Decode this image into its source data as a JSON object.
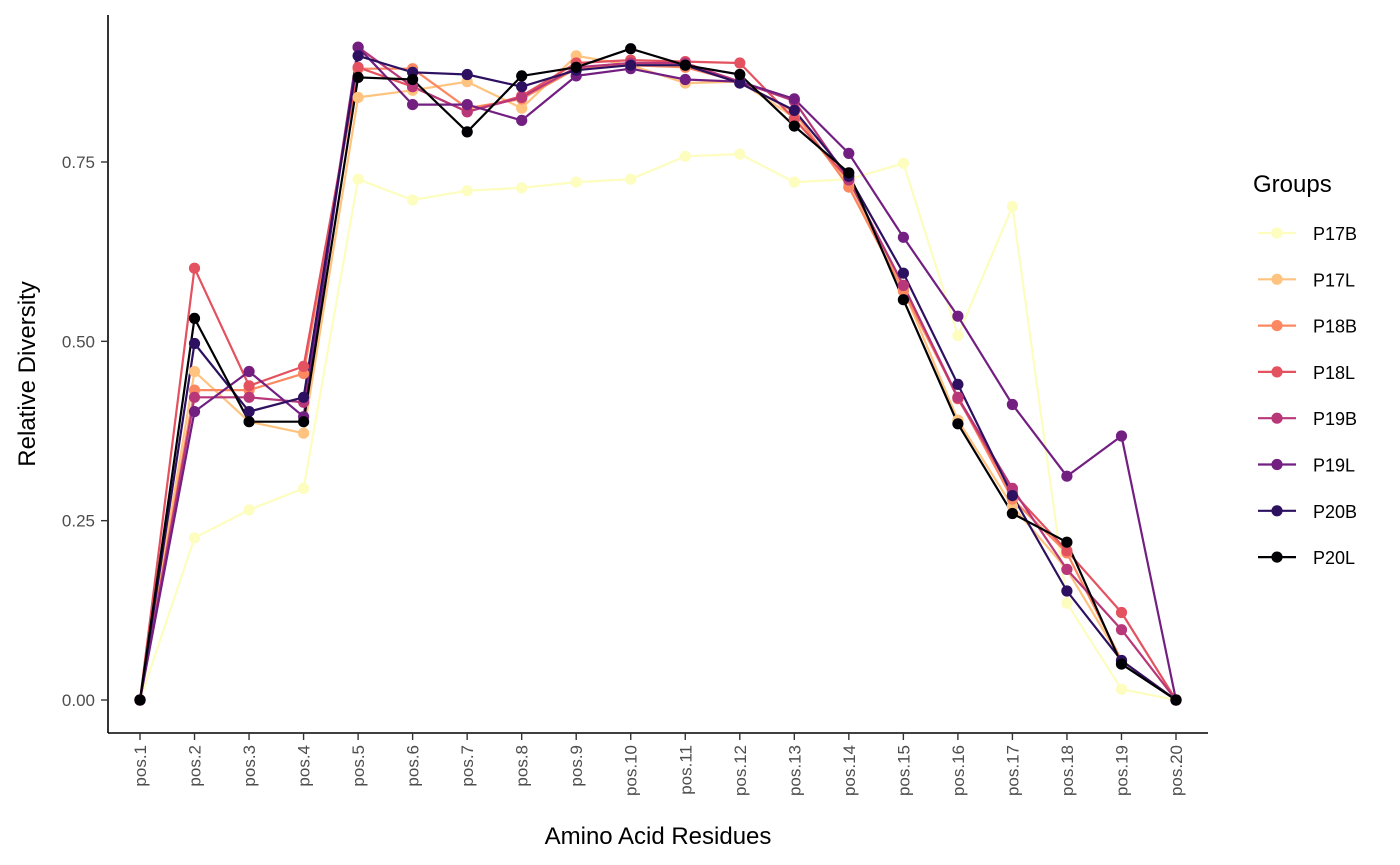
{
  "chart_data": {
    "type": "line",
    "xlabel": "Amino Acid Residues",
    "ylabel": "Relative Diversity",
    "categories": [
      "pos.1",
      "pos.2",
      "pos.3",
      "pos.4",
      "pos.5",
      "pos.6",
      "pos.7",
      "pos.8",
      "pos.9",
      "pos.10",
      "pos.11",
      "pos.12",
      "pos.13",
      "pos.14",
      "pos.15",
      "pos.16",
      "pos.17",
      "pos.18",
      "pos.19",
      "pos.20"
    ],
    "ylim": [
      -0.045,
      0.95
    ],
    "yticks": [
      0.0,
      0.25,
      0.5,
      0.75
    ],
    "ytick_labels": [
      "0.00",
      "0.25",
      "0.50",
      "0.75"
    ],
    "grid": false,
    "legend": {
      "title": "Groups",
      "position": "right"
    },
    "series": [
      {
        "name": "P17B",
        "color": "#FCFDBF",
        "values": [
          0.0,
          0.226,
          0.265,
          0.295,
          0.726,
          0.697,
          0.71,
          0.714,
          0.722,
          0.726,
          0.758,
          0.761,
          0.722,
          0.726,
          0.748,
          0.508,
          0.688,
          0.135,
          0.015,
          0.0
        ]
      },
      {
        "name": "P17L",
        "color": "#FEC37F",
        "values": [
          0.0,
          0.458,
          0.388,
          0.372,
          0.84,
          0.85,
          0.862,
          0.825,
          0.898,
          0.885,
          0.86,
          0.862,
          0.812,
          0.72,
          0.572,
          0.39,
          0.27,
          0.182,
          0.055,
          0.0
        ]
      },
      {
        "name": "P18B",
        "color": "#FB8861",
        "values": [
          0.0,
          0.432,
          0.432,
          0.455,
          0.88,
          0.88,
          0.825,
          0.838,
          0.88,
          0.885,
          0.882,
          0.862,
          0.82,
          0.715,
          0.57,
          0.422,
          0.28,
          0.205,
          0.055,
          0.0
        ]
      },
      {
        "name": "P18L",
        "color": "#E4515F",
        "values": [
          0.0,
          0.602,
          0.438,
          0.465,
          0.882,
          0.855,
          0.82,
          0.842,
          0.888,
          0.892,
          0.89,
          0.888,
          0.81,
          0.725,
          0.578,
          0.42,
          0.29,
          0.208,
          0.122,
          0.0
        ]
      },
      {
        "name": "P19B",
        "color": "#B73779",
        "values": [
          0.0,
          0.422,
          0.422,
          0.415,
          0.91,
          0.855,
          0.82,
          0.84,
          0.882,
          0.888,
          0.888,
          0.862,
          0.835,
          0.725,
          0.578,
          0.422,
          0.295,
          0.182,
          0.098,
          0.0
        ]
      },
      {
        "name": "P19L",
        "color": "#721F81",
        "values": [
          0.0,
          0.402,
          0.458,
          0.395,
          0.91,
          0.83,
          0.83,
          0.808,
          0.87,
          0.88,
          0.865,
          0.862,
          0.838,
          0.762,
          0.645,
          0.535,
          0.412,
          0.312,
          0.368,
          0.0
        ]
      },
      {
        "name": "P20B",
        "color": "#2D1160",
        "values": [
          0.0,
          0.497,
          0.402,
          0.422,
          0.898,
          0.875,
          0.872,
          0.855,
          0.878,
          0.885,
          0.885,
          0.86,
          0.822,
          0.73,
          0.595,
          0.44,
          0.285,
          0.152,
          0.055,
          0.0
        ]
      },
      {
        "name": "P20L",
        "color": "#000004",
        "values": [
          0.0,
          0.532,
          0.388,
          0.388,
          0.868,
          0.865,
          0.792,
          0.87,
          0.882,
          0.908,
          0.885,
          0.872,
          0.8,
          0.735,
          0.558,
          0.385,
          0.26,
          0.22,
          0.05,
          0.0
        ]
      }
    ]
  }
}
